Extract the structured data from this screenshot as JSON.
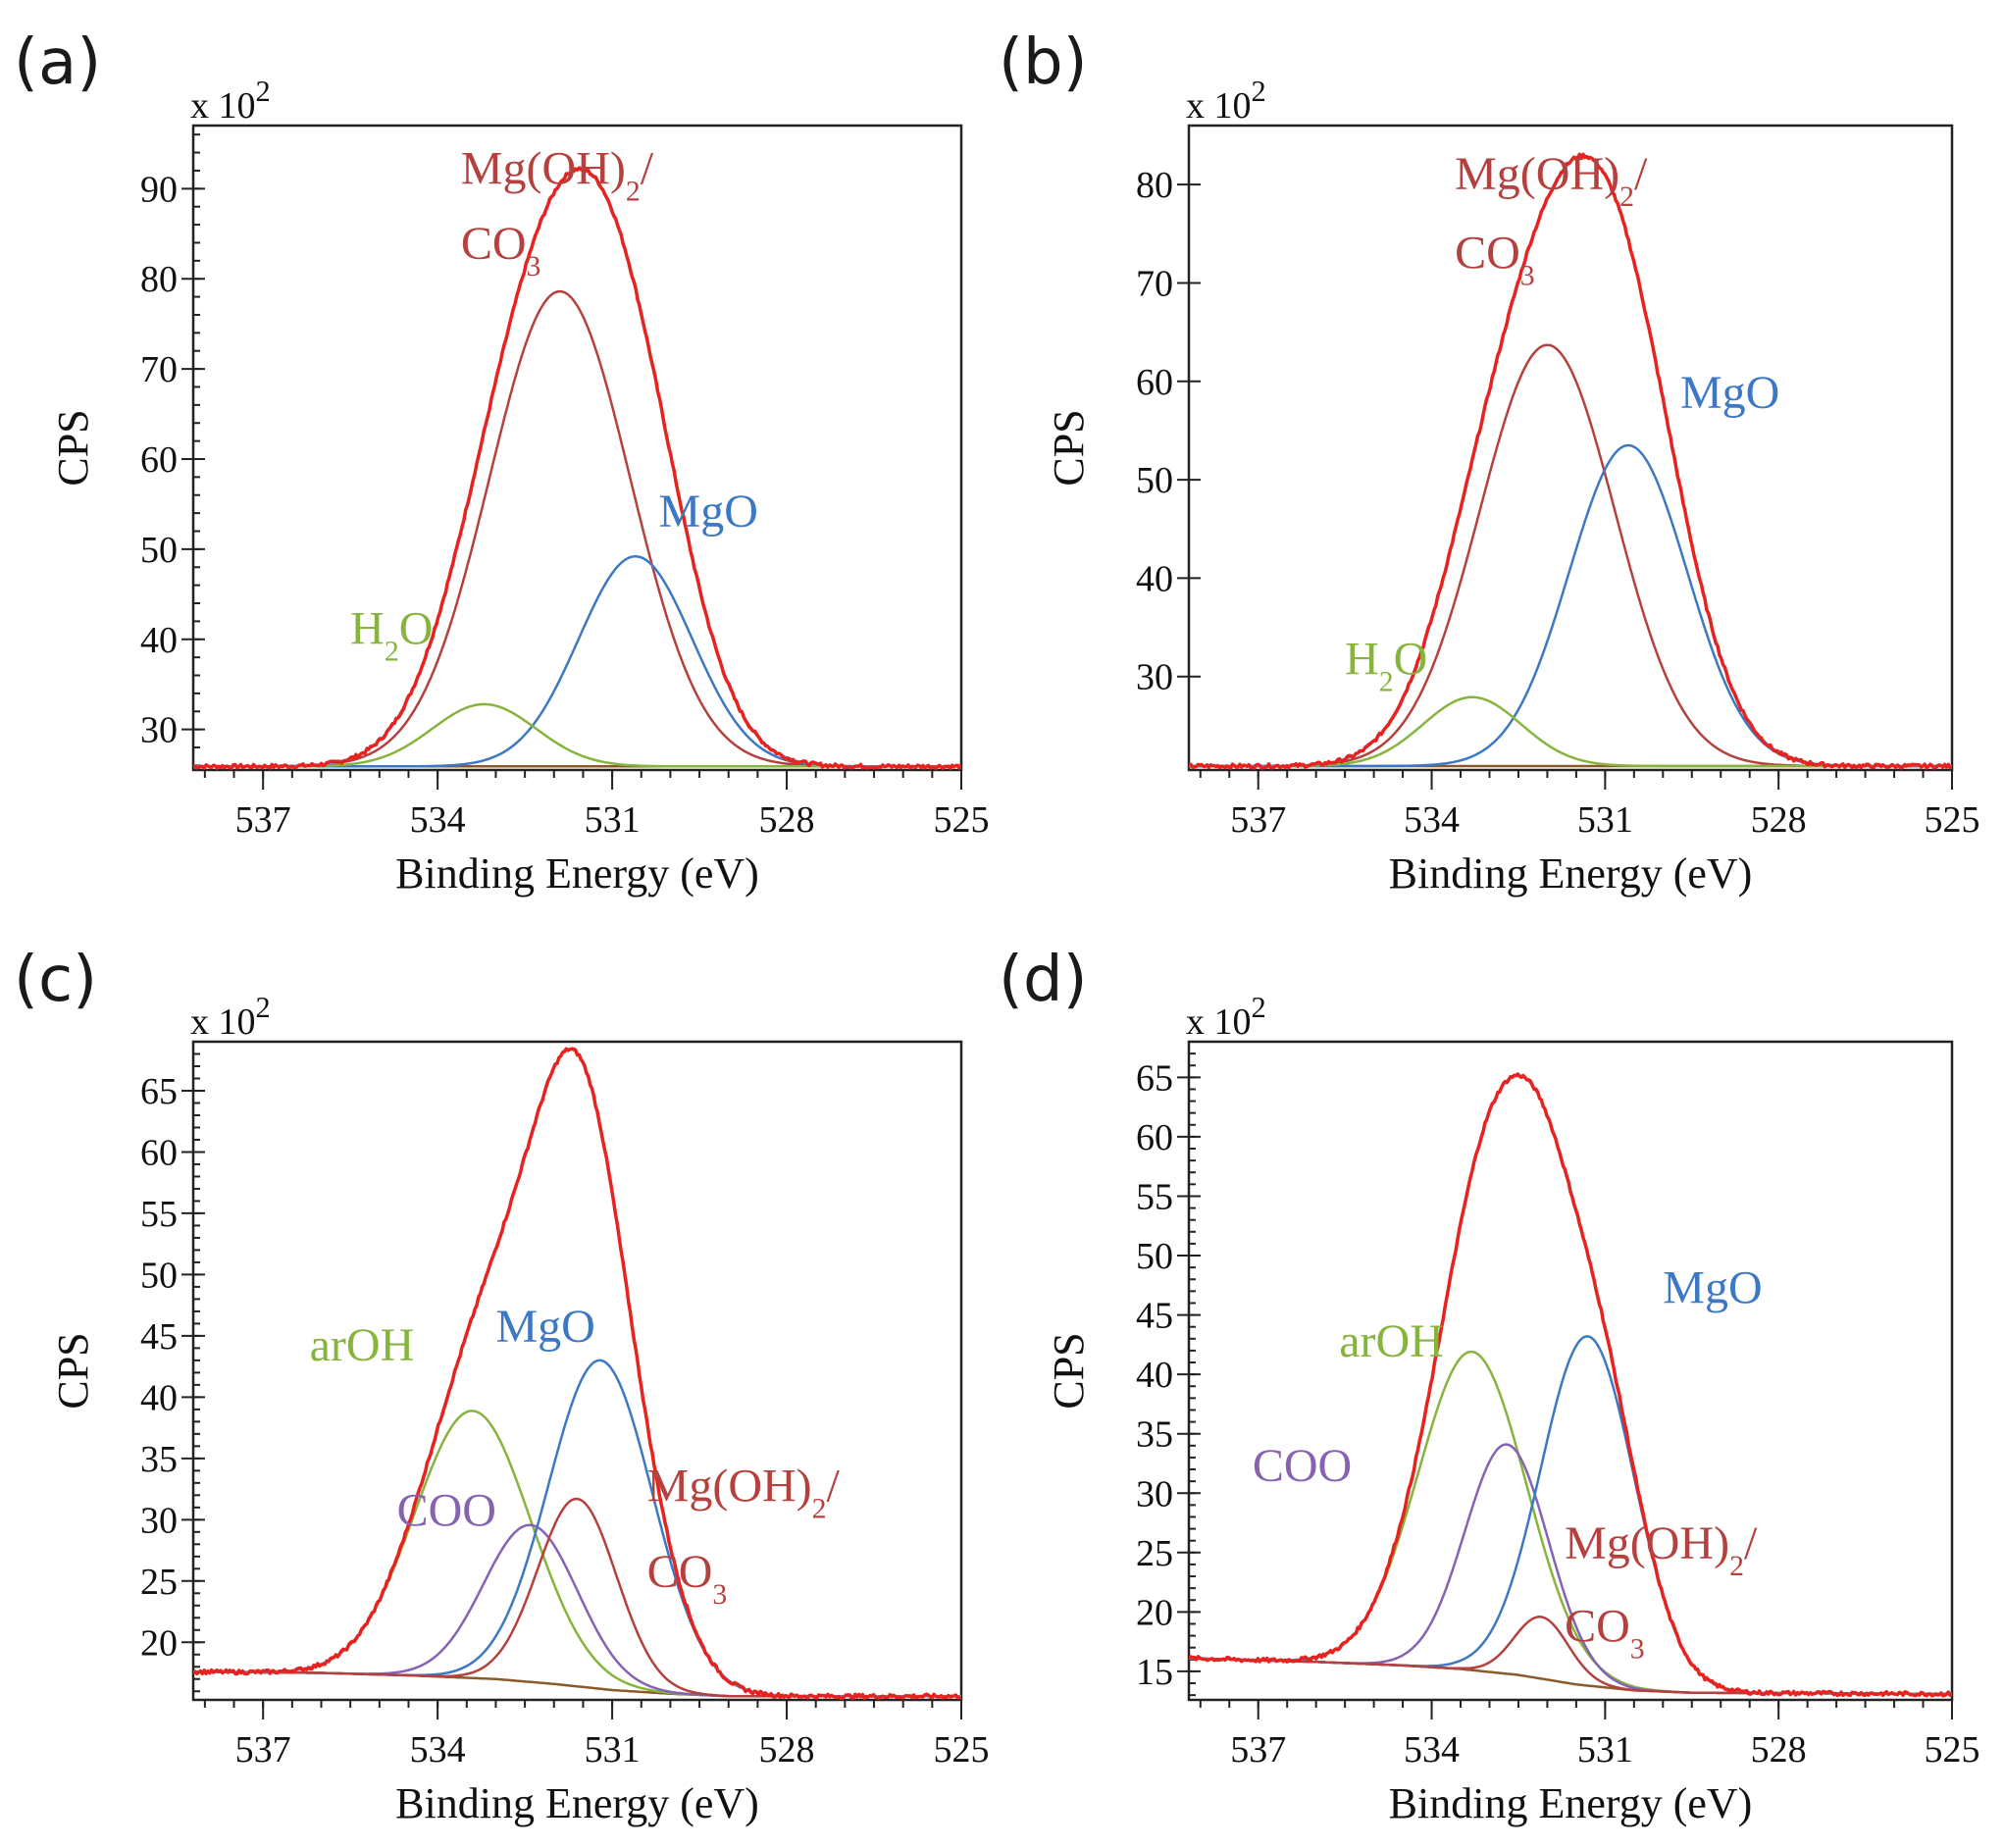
{
  "figure": {
    "background": "#ffffff"
  },
  "colors": {
    "envelope": "#e8231f",
    "MgOH2CO3": "#b5413f",
    "MgO": "#3d78c4",
    "H2O": "#86b43c",
    "arOH": "#86b43c",
    "COO": "#8662b3",
    "background": "#8b5a2b"
  },
  "chart_data": [
    {
      "panel": "(a)",
      "type": "line",
      "xlabel": "Binding Energy (eV)",
      "ylabel": "CPS",
      "y_scale_label": "x 10",
      "y_scale_exp": "2",
      "xlim": [
        538.2,
        525
      ],
      "ylim": [
        25.5,
        97
      ],
      "x_ticks": [
        537,
        534,
        531,
        528,
        525
      ],
      "y_ticks": [
        30,
        40,
        50,
        60,
        70,
        80,
        90
      ],
      "background": [
        [
          538.2,
          25.9
        ],
        [
          525,
          25.9
        ]
      ],
      "peaks": [
        {
          "name": "Mg(OH)2/CO3",
          "center": 531.9,
          "height": 52.7,
          "fwhm": 2.85,
          "color_key": "MgOH2CO3"
        },
        {
          "name": "MgO",
          "center": 530.6,
          "height": 23.3,
          "fwhm": 2.3,
          "color_key": "MgO"
        },
        {
          "name": "H2O",
          "center": 533.2,
          "height": 6.9,
          "fwhm": 2.1,
          "color_key": "H2O"
        }
      ],
      "labels": [
        {
          "text": "Mg(OH)",
          "sub": "2",
          "tail": "/",
          "x": 533.6,
          "y": 90.5,
          "color_key": "MgOH2CO3"
        },
        {
          "text": "CO",
          "sub": "3",
          "tail": "",
          "x": 533.6,
          "y": 82.2,
          "color_key": "MgOH2CO3"
        },
        {
          "text": "MgO",
          "sub": "",
          "tail": "",
          "x": 530.2,
          "y": 52.5,
          "color_key": "MgO"
        },
        {
          "text": "H",
          "sub": "2",
          "tail": "O",
          "x": 535.5,
          "y": 39.5,
          "color_key": "H2O"
        }
      ]
    },
    {
      "panel": "(b)",
      "type": "line",
      "xlabel": "Binding Energy (eV)",
      "ylabel": "CPS",
      "y_scale_label": "x 10",
      "y_scale_exp": "2",
      "xlim": [
        538.2,
        525
      ],
      "ylim": [
        20.5,
        86
      ],
      "x_ticks": [
        537,
        534,
        531,
        528,
        525
      ],
      "y_ticks": [
        30,
        40,
        50,
        60,
        70,
        80
      ],
      "background": [
        [
          538.2,
          20.9
        ],
        [
          525,
          20.9
        ]
      ],
      "peaks": [
        {
          "name": "Mg(OH)2/CO3",
          "center": 532.0,
          "height": 42.8,
          "fwhm": 2.75,
          "color_key": "MgOH2CO3"
        },
        {
          "name": "MgO",
          "center": 530.6,
          "height": 32.6,
          "fwhm": 2.4,
          "color_key": "MgO"
        },
        {
          "name": "H2O",
          "center": 533.3,
          "height": 7.0,
          "fwhm": 2.0,
          "color_key": "H2O"
        }
      ],
      "labels": [
        {
          "text": "Mg(OH)",
          "sub": "2",
          "tail": "/",
          "x": 533.6,
          "y": 79.5,
          "color_key": "MgOH2CO3"
        },
        {
          "text": "CO",
          "sub": "3",
          "tail": "",
          "x": 533.6,
          "y": 71.5,
          "color_key": "MgOH2CO3"
        },
        {
          "text": "MgO",
          "sub": "",
          "tail": "",
          "x": 529.7,
          "y": 57.3,
          "color_key": "MgO"
        },
        {
          "text": "H",
          "sub": "2",
          "tail": "O",
          "x": 535.5,
          "y": 30.2,
          "color_key": "H2O"
        }
      ]
    },
    {
      "panel": "(c)",
      "type": "line",
      "xlabel": "Binding Energy (eV)",
      "ylabel": "CPS",
      "y_scale_label": "x 10",
      "y_scale_exp": "2",
      "xlim": [
        538.2,
        525
      ],
      "ylim": [
        15.3,
        69
      ],
      "x_ticks": [
        537,
        534,
        531,
        528,
        525
      ],
      "y_ticks": [
        20,
        25,
        30,
        35,
        40,
        45,
        50,
        55,
        60,
        65
      ],
      "background": [
        [
          538.2,
          17.6
        ],
        [
          536.0,
          17.5
        ],
        [
          534.5,
          17.3
        ],
        [
          533.0,
          17.0
        ],
        [
          532.0,
          16.6
        ],
        [
          531.0,
          16.1
        ],
        [
          530.0,
          15.8
        ],
        [
          529.0,
          15.6
        ],
        [
          525,
          15.6
        ]
      ],
      "peaks": [
        {
          "name": "arOH",
          "center": 533.4,
          "height": 21.8,
          "fwhm": 2.35,
          "color_key": "arOH"
        },
        {
          "name": "COO",
          "center": 532.4,
          "height": 12.8,
          "fwhm": 1.9,
          "color_key": "COO"
        },
        {
          "name": "MgO",
          "center": 531.2,
          "height": 26.8,
          "fwhm": 2.1,
          "color_key": "MgO"
        },
        {
          "name": "Mg(OH)2/CO3",
          "center": 531.6,
          "height": 15.3,
          "fwhm": 1.6,
          "color_key": "MgOH2CO3"
        }
      ],
      "labels": [
        {
          "text": "arOH",
          "sub": "",
          "tail": "",
          "x": 536.2,
          "y": 43.0,
          "color_key": "arOH"
        },
        {
          "text": "MgO",
          "sub": "",
          "tail": "",
          "x": 533.0,
          "y": 44.5,
          "color_key": "MgO"
        },
        {
          "text": "COO",
          "sub": "",
          "tail": "",
          "x": 534.7,
          "y": 29.5,
          "color_key": "COO"
        },
        {
          "text": "Mg(OH)",
          "sub": "2",
          "tail": "/",
          "x": 530.4,
          "y": 31.5,
          "color_key": "MgOH2CO3"
        },
        {
          "text": "CO",
          "sub": "3",
          "tail": "",
          "x": 530.4,
          "y": 24.5,
          "color_key": "MgOH2CO3"
        }
      ]
    },
    {
      "panel": "(d)",
      "type": "line",
      "xlabel": "Binding Energy (eV)",
      "ylabel": "CPS",
      "y_scale_label": "x 10",
      "y_scale_exp": "2",
      "xlim": [
        538.2,
        525
      ],
      "ylim": [
        12.6,
        68
      ],
      "x_ticks": [
        537,
        534,
        531,
        528,
        525
      ],
      "y_ticks": [
        15,
        20,
        25,
        30,
        35,
        40,
        45,
        50,
        55,
        60,
        65
      ],
      "background": [
        [
          538.2,
          16.1
        ],
        [
          536.0,
          15.8
        ],
        [
          534.5,
          15.5
        ],
        [
          533.5,
          15.2
        ],
        [
          532.5,
          14.7
        ],
        [
          531.5,
          13.9
        ],
        [
          530.5,
          13.4
        ],
        [
          529.5,
          13.2
        ],
        [
          525,
          13.1
        ]
      ],
      "peaks": [
        {
          "name": "arOH",
          "center": 533.3,
          "height": 26.8,
          "fwhm": 2.2,
          "color_key": "arOH"
        },
        {
          "name": "COO",
          "center": 532.7,
          "height": 19.3,
          "fwhm": 1.7,
          "color_key": "COO"
        },
        {
          "name": "MgO",
          "center": 531.3,
          "height": 29.4,
          "fwhm": 1.9,
          "color_key": "MgO"
        },
        {
          "name": "Mg(OH)2/CO3",
          "center": 532.1,
          "height": 5.2,
          "fwhm": 1.1,
          "color_key": "MgOH2CO3"
        }
      ],
      "labels": [
        {
          "text": "arOH",
          "sub": "",
          "tail": "",
          "x": 535.6,
          "y": 41.5,
          "color_key": "arOH"
        },
        {
          "text": "MgO",
          "sub": "",
          "tail": "",
          "x": 530.0,
          "y": 46.0,
          "color_key": "MgO"
        },
        {
          "text": "COO",
          "sub": "",
          "tail": "",
          "x": 537.1,
          "y": 31.0,
          "color_key": "COO"
        },
        {
          "text": "Mg(OH)",
          "sub": "2",
          "tail": "/",
          "x": 531.7,
          "y": 24.5,
          "color_key": "MgOH2CO3"
        },
        {
          "text": "CO",
          "sub": "3",
          "tail": "",
          "x": 531.7,
          "y": 17.5,
          "color_key": "MgOH2CO3"
        }
      ]
    }
  ]
}
